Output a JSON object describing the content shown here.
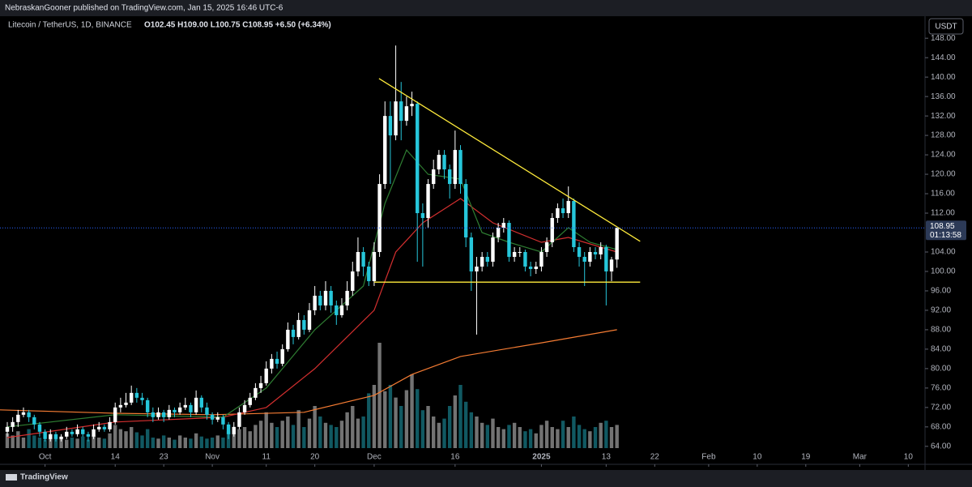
{
  "header": {
    "publisher": "NebraskanGooner published on TradingView.com, Jan 15, 2025 16:46 UTC-6",
    "currency_button": "USDT",
    "brand": "TradingView"
  },
  "chart_data": {
    "type": "candlestick",
    "title": "Litecoin / TetherUS, 1D, BINANCE",
    "ohlc_text": "O102.45 H109.00 L100.75 C108.95 +6.50 (+6.34%)",
    "up_color": "#ffffff",
    "down_color": "#26c6da",
    "xlim": [
      -1.35,
      170.1
    ],
    "xticks": [
      {
        "value": 7,
        "label": "Oct"
      },
      {
        "value": 20,
        "label": "14"
      },
      {
        "value": 29,
        "label": "23"
      },
      {
        "value": 38,
        "label": "Nov"
      },
      {
        "value": 48,
        "label": "11"
      },
      {
        "value": 57,
        "label": "20"
      },
      {
        "value": 68,
        "label": "Dec"
      },
      {
        "value": 83,
        "label": "16"
      },
      {
        "value": 99,
        "label": "2025"
      },
      {
        "value": 111,
        "label": "13"
      },
      {
        "value": 120,
        "label": "22"
      },
      {
        "value": 130,
        "label": "Feb"
      },
      {
        "value": 139,
        "label": "10"
      },
      {
        "value": 148,
        "label": "19"
      },
      {
        "value": 158,
        "label": "Mar"
      },
      {
        "value": 167,
        "label": "10"
      }
    ],
    "ylim": [
      60.3,
      152.2
    ],
    "yticks": [
      {
        "value": 64,
        "label": "64.00"
      },
      {
        "value": 68,
        "label": "68.00"
      },
      {
        "value": 72,
        "label": "72.00"
      },
      {
        "value": 76,
        "label": "76.00"
      },
      {
        "value": 80,
        "label": "80.00"
      },
      {
        "value": 84,
        "label": "84.00"
      },
      {
        "value": 88,
        "label": "88.00"
      },
      {
        "value": 92,
        "label": "92.00"
      },
      {
        "value": 96,
        "label": "96.00"
      },
      {
        "value": 100,
        "label": "100.00"
      },
      {
        "value": 104,
        "label": "104.00"
      },
      {
        "value": 112,
        "label": "112.00"
      },
      {
        "value": 116,
        "label": "116.00"
      },
      {
        "value": 120,
        "label": "120.00"
      },
      {
        "value": 124,
        "label": "124.00"
      },
      {
        "value": 128,
        "label": "128.00"
      },
      {
        "value": 132,
        "label": "132.00"
      },
      {
        "value": 136,
        "label": "136.00"
      },
      {
        "value": 140,
        "label": "140.00"
      },
      {
        "value": 144,
        "label": "144.00"
      },
      {
        "value": 148,
        "label": "148.00"
      }
    ],
    "open": [
      67,
      68,
      69,
      70.5,
      71,
      70,
      68.5,
      67,
      65.5,
      66.5,
      65.5,
      66,
      67,
      66.5,
      67.5,
      66.5,
      66,
      67.5,
      68,
      67.5,
      69,
      72,
      72.5,
      73,
      75,
      74,
      73.5,
      71,
      70,
      71,
      70,
      71.5,
      71,
      72,
      72.5,
      71,
      74,
      72,
      70.5,
      69.5,
      70,
      68.5,
      66.5,
      68,
      71,
      72.5,
      74,
      76,
      77,
      80,
      82,
      81,
      84,
      88,
      86.5,
      90,
      88,
      92,
      95,
      93,
      96,
      93,
      91,
      93,
      96,
      100,
      104,
      101,
      98,
      104,
      118,
      132,
      128,
      135,
      131,
      134,
      134.5,
      112,
      111,
      118,
      121,
      124,
      121,
      118,
      125,
      118,
      107,
      100,
      101,
      103,
      102,
      107,
      109,
      110,
      103,
      104,
      104,
      101,
      100.5,
      101,
      104,
      106,
      111,
      113,
      112,
      114.5,
      105,
      103,
      102,
      104,
      103.5,
      105,
      100,
      102.45
    ],
    "high": [
      69,
      70,
      71.5,
      72,
      71.5,
      70.5,
      69,
      67.5,
      67.5,
      67,
      66.5,
      68,
      67.5,
      68.5,
      68,
      67,
      68.5,
      69,
      68.5,
      70,
      73,
      74,
      75,
      76.5,
      76,
      75,
      74,
      72,
      72,
      71.5,
      72.5,
      72,
      73,
      74,
      73,
      75.5,
      74.5,
      73,
      71,
      71,
      70.5,
      69,
      69,
      72,
      73.5,
      75,
      77,
      78.5,
      81.5,
      83,
      83.5,
      85,
      89.5,
      89,
      91.5,
      91,
      93.5,
      97,
      96,
      98,
      97,
      94,
      94.5,
      98,
      102,
      107,
      105,
      102,
      106,
      120,
      135,
      135,
      146.5,
      139,
      136,
      137,
      135,
      114,
      119,
      123,
      125,
      125,
      122,
      129,
      126,
      119,
      108,
      103,
      104,
      104,
      108,
      110,
      111,
      110.5,
      105,
      105,
      104.5,
      102,
      102,
      105,
      107,
      112,
      114,
      115,
      117.5,
      115,
      106,
      104,
      105,
      105,
      106,
      105.5,
      103,
      109
    ],
    "low": [
      66,
      67,
      68,
      70,
      69,
      67.5,
      66,
      65,
      65,
      65,
      65,
      65.5,
      66,
      66,
      66,
      65,
      65.5,
      67,
      67,
      67,
      68.5,
      71,
      72,
      72.5,
      73,
      72.5,
      70,
      69,
      69.5,
      69,
      69.5,
      70,
      70.5,
      71.5,
      70,
      70.5,
      71,
      69.5,
      68.5,
      69,
      67.5,
      65.5,
      66,
      67.5,
      70.5,
      72,
      73.5,
      75,
      76.5,
      79,
      80,
      80.5,
      83.5,
      85,
      86,
      87,
      87.5,
      91,
      92,
      92,
      91.5,
      89,
      90.5,
      92,
      95,
      99,
      99,
      97,
      97,
      103,
      117,
      118,
      127,
      127,
      130,
      132,
      102,
      101,
      109,
      117,
      120,
      119,
      115,
      117,
      116,
      105,
      96,
      87,
      100,
      101,
      101,
      106,
      108,
      102,
      102,
      103,
      100,
      99,
      99.5,
      100,
      103,
      105,
      110,
      111,
      111,
      104,
      101,
      97,
      101,
      102.5,
      102.5,
      93,
      98,
      100.75
    ],
    "close": [
      68,
      69,
      70.5,
      71,
      70,
      68.5,
      67,
      65.5,
      66.5,
      65.5,
      66,
      67,
      66.5,
      67.5,
      66.5,
      66,
      67.5,
      68,
      67.5,
      69,
      72,
      72.5,
      73,
      75,
      74,
      73.5,
      71,
      70,
      71,
      70,
      71.5,
      71,
      72,
      72.5,
      71,
      74,
      72,
      70.5,
      69.5,
      70,
      68.5,
      66.5,
      68,
      71,
      72.5,
      74,
      76,
      77,
      80,
      82,
      81,
      84,
      88,
      86.5,
      90,
      88,
      92,
      95,
      93,
      96,
      93,
      91,
      93,
      96,
      100,
      104,
      101,
      98,
      104,
      118,
      132,
      128,
      135,
      131,
      134,
      134.5,
      112,
      111,
      118,
      121,
      124,
      121,
      118,
      125,
      118,
      107,
      100,
      101,
      103,
      102,
      107,
      109,
      110,
      103,
      104,
      104,
      101,
      100.5,
      101,
      104,
      106,
      111,
      113,
      112,
      114.5,
      105,
      103,
      102,
      104,
      103.5,
      105,
      100,
      102.45,
      108.95
    ],
    "volume": [
      14,
      12,
      16,
      10,
      18,
      12,
      10,
      8,
      10,
      12,
      9,
      8,
      10,
      9,
      11,
      8,
      12,
      10,
      9,
      14,
      22,
      18,
      16,
      20,
      15,
      12,
      18,
      10,
      9,
      12,
      10,
      8,
      12,
      10,
      9,
      14,
      11,
      9,
      10,
      12,
      10,
      16,
      14,
      18,
      20,
      16,
      22,
      26,
      34,
      24,
      20,
      26,
      30,
      22,
      36,
      20,
      28,
      40,
      30,
      24,
      22,
      20,
      26,
      34,
      40,
      28,
      30,
      52,
      60,
      100,
      54,
      60,
      48,
      40,
      55,
      70,
      56,
      36,
      40,
      30,
      24,
      28,
      40,
      50,
      60,
      44,
      34,
      30,
      24,
      22,
      28,
      20,
      18,
      22,
      24,
      20,
      16,
      18,
      14,
      22,
      26,
      20,
      18,
      26,
      20,
      30,
      22,
      18,
      16,
      20,
      24,
      26,
      20,
      22
    ],
    "lines": [
      {
        "color": "#f57c33",
        "x": [
          -1.35,
          20,
          38,
          55,
          68,
          75,
          84,
          99,
          113
        ],
        "values": [
          71.5,
          70.8,
          70.5,
          71,
          74.5,
          78.8,
          82.5,
          85.3,
          88
        ]
      },
      {
        "color": "#d32f2f",
        "x": [
          0,
          20,
          40,
          48,
          57,
          68,
          72,
          77,
          84,
          90,
          99,
          104,
          113
        ],
        "values": [
          65.8,
          69,
          70,
          72,
          80,
          92,
          104,
          110,
          115,
          110,
          106,
          107,
          104
        ]
      },
      {
        "color": "#2e7d32",
        "x": [
          0,
          20,
          40,
          48,
          57,
          66,
          70,
          74,
          78,
          84,
          88,
          93,
          99,
          104,
          108,
          113
        ],
        "values": [
          68,
          70.5,
          70,
          76,
          88,
          97,
          114,
          125,
          120,
          119,
          108,
          106,
          104,
          109,
          106,
          104.5
        ]
      }
    ],
    "annotations": [
      {
        "color": "#ffeb3b",
        "x": [
          68.9,
          117.3
        ],
        "values": [
          139.7,
          106.2
        ]
      },
      {
        "color": "#ffeb3b",
        "x": [
          68,
          117.3
        ],
        "values": [
          97.8,
          97.8
        ]
      }
    ],
    "last_price": {
      "value": 108.95,
      "label": "108.95",
      "countdown": "01:13:58",
      "color": "#2962ff"
    }
  }
}
